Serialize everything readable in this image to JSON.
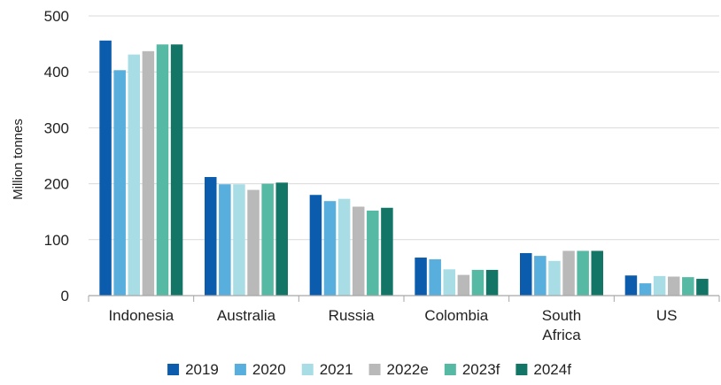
{
  "chart_data": {
    "type": "bar",
    "title": "",
    "xlabel": "",
    "ylabel": "Million tonnes",
    "ylim": [
      0,
      500
    ],
    "yticks": [
      0,
      100,
      200,
      300,
      400,
      500
    ],
    "grid": true,
    "legend_position": "bottom",
    "categories": [
      [
        "Indonesia"
      ],
      [
        "Australia"
      ],
      [
        "Russia"
      ],
      [
        "Colombia"
      ],
      [
        "South",
        "Africa"
      ],
      [
        "US"
      ]
    ],
    "series": [
      {
        "name": "2019",
        "color": "#0b5cad",
        "values": [
          456,
          212,
          180,
          68,
          76,
          36
        ]
      },
      {
        "name": "2020",
        "color": "#58aedd",
        "values": [
          403,
          199,
          169,
          65,
          71,
          22
        ]
      },
      {
        "name": "2021",
        "color": "#a9dde6",
        "values": [
          431,
          199,
          173,
          47,
          62,
          35
        ]
      },
      {
        "name": "2022e",
        "color": "#b9b9b9",
        "values": [
          437,
          189,
          159,
          37,
          80,
          34
        ]
      },
      {
        "name": "2023f",
        "color": "#55b9a3",
        "values": [
          449,
          200,
          152,
          46,
          80,
          33
        ]
      },
      {
        "name": "2024f",
        "color": "#137566",
        "values": [
          449,
          202,
          157,
          46,
          80,
          30
        ]
      }
    ]
  }
}
